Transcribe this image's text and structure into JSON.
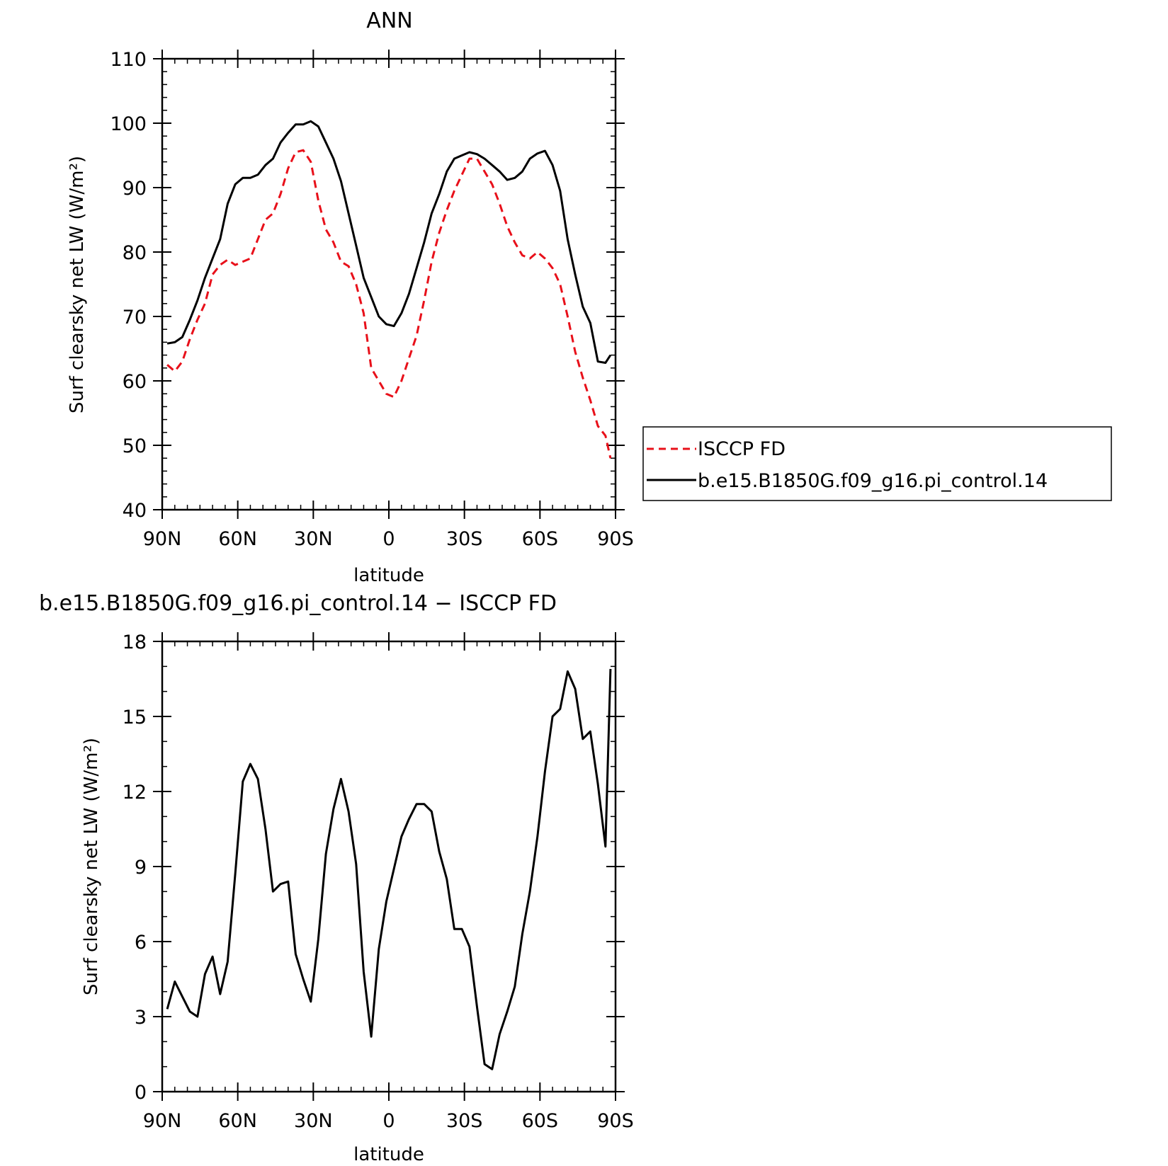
{
  "chart_data": [
    {
      "type": "line",
      "title": "ANN",
      "xlabel": "latitude",
      "ylabel": "Surf clearsky net LW (W/m²)",
      "xlim": [
        -90,
        90
      ],
      "ylim": [
        40,
        110
      ],
      "x_ticks": [
        -90,
        -60,
        -30,
        0,
        30,
        60,
        90
      ],
      "x_tick_labels": [
        "90N",
        "60N",
        "30N",
        "0",
        "30S",
        "60S",
        "90S"
      ],
      "y_ticks": [
        40,
        50,
        60,
        70,
        80,
        90,
        100,
        110
      ],
      "y_tick_labels": [
        "40",
        "50",
        "60",
        "70",
        "80",
        "90",
        "100",
        "110"
      ],
      "legend_position": "right",
      "grid": false,
      "series": [
        {
          "name": "ISCCP FD",
          "color": "#e8101a",
          "dash": "dashed",
          "x": [
            -88,
            -85,
            -82,
            -79,
            -76,
            -73,
            -70,
            -67,
            -64,
            -61,
            -58,
            -55,
            -52,
            -49,
            -46,
            -43,
            -40,
            -37,
            -34,
            -31,
            -28,
            -25,
            -22,
            -19,
            -16,
            -13,
            -10,
            -7,
            -4,
            -1,
            2,
            5,
            8,
            11,
            14,
            17,
            20,
            23,
            26,
            29,
            32,
            35,
            38,
            41,
            44,
            47,
            50,
            53,
            56,
            59,
            62,
            65,
            68,
            71,
            74,
            77,
            80,
            83,
            86,
            88
          ],
          "y": [
            62.5,
            61.5,
            63.0,
            66.5,
            69.5,
            72.0,
            76.5,
            78.0,
            78.8,
            78.0,
            78.5,
            79.0,
            82.0,
            85.0,
            86.0,
            89.0,
            93.0,
            95.5,
            95.8,
            94.0,
            88.0,
            83.5,
            81.5,
            78.5,
            77.8,
            75.0,
            70.5,
            62.0,
            60.0,
            58.0,
            57.5,
            60.0,
            63.5,
            67.0,
            72.5,
            78.5,
            83.0,
            86.5,
            89.5,
            92.0,
            94.5,
            94.5,
            92.5,
            90.5,
            87.5,
            84.0,
            81.5,
            79.5,
            79.0,
            80.0,
            79.0,
            77.5,
            75.0,
            70.0,
            64.5,
            60.5,
            57.0,
            53.0,
            51.5,
            48.0
          ]
        },
        {
          "name": "b.e15.B1850G.f09_g16.pi_control.14",
          "color": "#000000",
          "dash": "solid",
          "x": [
            -88,
            -85,
            -82,
            -79,
            -76,
            -73,
            -70,
            -67,
            -64,
            -61,
            -58,
            -55,
            -52,
            -49,
            -46,
            -43,
            -40,
            -37,
            -34,
            -31,
            -28,
            -25,
            -22,
            -19,
            -16,
            -13,
            -10,
            -7,
            -4,
            -1,
            2,
            5,
            8,
            11,
            14,
            17,
            20,
            23,
            26,
            29,
            32,
            35,
            38,
            41,
            44,
            47,
            50,
            53,
            56,
            59,
            62,
            65,
            68,
            71,
            74,
            77,
            80,
            83,
            86,
            88
          ],
          "y": [
            65.8,
            66.0,
            66.8,
            69.5,
            72.5,
            76.0,
            79.0,
            82.0,
            87.5,
            90.5,
            91.5,
            91.5,
            92.0,
            93.5,
            94.5,
            97.0,
            98.5,
            99.8,
            99.8,
            100.3,
            99.5,
            97.0,
            94.5,
            91.0,
            86.0,
            81.0,
            76.0,
            73.0,
            70.0,
            68.8,
            68.5,
            70.5,
            73.5,
            77.5,
            81.5,
            86.0,
            89.0,
            92.5,
            94.5,
            95.0,
            95.5,
            95.2,
            94.5,
            93.5,
            92.5,
            91.2,
            91.5,
            92.5,
            94.5,
            95.3,
            95.7,
            93.5,
            89.5,
            82.0,
            76.5,
            71.5,
            69.0,
            63.0,
            62.8,
            64.0
          ]
        }
      ]
    },
    {
      "type": "line",
      "title": "b.e15.B1850G.f09_g16.pi_control.14 − ISCCP FD",
      "xlabel": "latitude",
      "ylabel": "Surf clearsky net LW (W/m²)",
      "xlim": [
        -90,
        90
      ],
      "ylim": [
        0,
        18
      ],
      "x_ticks": [
        -90,
        -60,
        -30,
        0,
        30,
        60,
        90
      ],
      "x_tick_labels": [
        "90N",
        "60N",
        "30N",
        "0",
        "30S",
        "60S",
        "90S"
      ],
      "y_ticks": [
        0,
        3,
        6,
        9,
        12,
        15,
        18
      ],
      "y_tick_labels": [
        "0",
        "3",
        "6",
        "9",
        "12",
        "15",
        "18"
      ],
      "grid": false,
      "series": [
        {
          "color": "#000000",
          "dash": "solid",
          "x": [
            -88,
            -85,
            -82,
            -79,
            -76,
            -73,
            -70,
            -67,
            -64,
            -61,
            -58,
            -55,
            -52,
            -49,
            -46,
            -43,
            -40,
            -37,
            -34,
            -31,
            -28,
            -25,
            -22,
            -19,
            -16,
            -13,
            -10,
            -7,
            -4,
            -1,
            2,
            5,
            8,
            11,
            14,
            17,
            20,
            23,
            26,
            29,
            32,
            35,
            38,
            41,
            44,
            47,
            50,
            53,
            56,
            59,
            62,
            65,
            68,
            71,
            74,
            77,
            80,
            83,
            86,
            88
          ],
          "y": [
            3.3,
            4.4,
            3.8,
            3.2,
            3.0,
            4.7,
            5.4,
            3.9,
            5.2,
            8.7,
            12.4,
            13.1,
            12.5,
            10.5,
            8.0,
            8.3,
            8.4,
            5.5,
            4.5,
            3.6,
            6.1,
            9.5,
            11.3,
            12.5,
            11.2,
            9.1,
            4.8,
            2.2,
            5.7,
            7.6,
            8.9,
            10.2,
            10.9,
            11.5,
            11.5,
            11.2,
            9.6,
            8.5,
            6.5,
            6.5,
            5.8,
            3.4,
            1.1,
            0.9,
            2.3,
            3.2,
            4.2,
            6.3,
            8.0,
            10.2,
            12.8,
            15.0,
            15.3,
            16.8,
            16.1,
            14.1,
            14.4,
            12.3,
            9.8,
            16.9
          ]
        }
      ]
    }
  ]
}
